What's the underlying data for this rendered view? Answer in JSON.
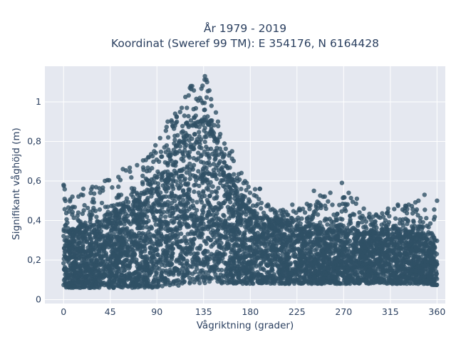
{
  "chart_data": {
    "type": "scatter",
    "title_line1": "År 1979 - 2019",
    "title_line2": "Koordinat (Sweref 99 TM): E 354176, N 6164428",
    "xlabel": "Vågriktning (grader)",
    "ylabel": "Signifikant våghöjd (m)",
    "xlim": [
      -18,
      368
    ],
    "ylim": [
      -0.02,
      1.18
    ],
    "x_ticks": [
      0,
      45,
      90,
      135,
      180,
      225,
      270,
      315,
      360
    ],
    "x_tick_labels": [
      "0",
      "45",
      "90",
      "135",
      "180",
      "225",
      "270",
      "315",
      "360"
    ],
    "y_ticks": [
      0,
      0.2,
      0.4,
      0.6,
      0.8,
      1
    ],
    "y_tick_labels": [
      "0",
      "0,2",
      "0,4",
      "0,6",
      "0,8",
      "1"
    ],
    "grid": true,
    "marker_color": "#2f5065",
    "background_color": "#e5e8f0",
    "series": [
      {
        "x": [
          0,
          10,
          20,
          30,
          40,
          50,
          60,
          70,
          80,
          90,
          100,
          110,
          120,
          125,
          130,
          135,
          140,
          145,
          150,
          160,
          170,
          180,
          190,
          200,
          210,
          220,
          230,
          240,
          250,
          260,
          270,
          280,
          290,
          300,
          310,
          320,
          330,
          340,
          350,
          360
        ],
        "y_min": [
          0.06,
          0.06,
          0.06,
          0.06,
          0.06,
          0.06,
          0.06,
          0.06,
          0.06,
          0.06,
          0.07,
          0.07,
          0.08,
          0.08,
          0.08,
          0.08,
          0.08,
          0.08,
          0.08,
          0.08,
          0.08,
          0.08,
          0.08,
          0.08,
          0.08,
          0.08,
          0.08,
          0.08,
          0.08,
          0.08,
          0.08,
          0.08,
          0.08,
          0.08,
          0.08,
          0.08,
          0.08,
          0.08,
          0.08,
          0.07
        ],
        "y_dense_max": [
          0.34,
          0.36,
          0.38,
          0.38,
          0.4,
          0.43,
          0.47,
          0.5,
          0.55,
          0.62,
          0.7,
          0.78,
          0.86,
          0.88,
          0.9,
          0.9,
          0.88,
          0.84,
          0.76,
          0.62,
          0.5,
          0.45,
          0.42,
          0.4,
          0.38,
          0.37,
          0.36,
          0.36,
          0.36,
          0.35,
          0.35,
          0.35,
          0.34,
          0.34,
          0.34,
          0.34,
          0.34,
          0.34,
          0.33,
          0.33
        ],
        "y_max": [
          0.58,
          0.52,
          0.56,
          0.57,
          0.6,
          0.62,
          0.66,
          0.68,
          0.72,
          0.78,
          0.9,
          0.94,
          1.08,
          1.08,
          1.02,
          1.13,
          1.1,
          0.98,
          0.9,
          0.75,
          0.64,
          0.57,
          0.56,
          0.48,
          0.45,
          0.48,
          0.46,
          0.55,
          0.52,
          0.54,
          0.59,
          0.51,
          0.46,
          0.43,
          0.46,
          0.48,
          0.48,
          0.5,
          0.53,
          0.5
        ]
      }
    ]
  }
}
